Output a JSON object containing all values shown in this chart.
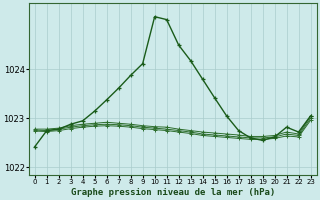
{
  "title": "Graphe pression niveau de la mer (hPa)",
  "background_color": "#ceeaea",
  "grid_color": "#aacccc",
  "line_color_main": "#1a5c1a",
  "line_color_flat": "#2d6e2d",
  "xlim": [
    -0.5,
    23.5
  ],
  "ylim": [
    1021.85,
    1025.35
  ],
  "yticks": [
    1022,
    1023,
    1024
  ],
  "xticks": [
    0,
    1,
    2,
    3,
    4,
    5,
    6,
    7,
    8,
    9,
    10,
    11,
    12,
    13,
    14,
    15,
    16,
    17,
    18,
    19,
    20,
    21,
    22,
    23
  ],
  "series_main": [
    1022.42,
    1022.75,
    1022.78,
    1022.88,
    1022.95,
    1023.15,
    1023.38,
    1023.62,
    1023.88,
    1024.12,
    1025.08,
    1025.02,
    1024.5,
    1024.18,
    1023.8,
    1023.42,
    1023.05,
    1022.75,
    1022.6,
    1022.55,
    1022.62,
    1022.82,
    1022.72,
    1023.05
  ],
  "series_flat1": [
    1022.78,
    1022.78,
    1022.8,
    1022.85,
    1022.88,
    1022.9,
    1022.92,
    1022.9,
    1022.88,
    1022.85,
    1022.83,
    1022.82,
    1022.78,
    1022.75,
    1022.72,
    1022.7,
    1022.68,
    1022.66,
    1022.63,
    1022.63,
    1022.65,
    1022.72,
    1022.68,
    1023.04
  ],
  "series_flat2": [
    1022.76,
    1022.75,
    1022.78,
    1022.82,
    1022.85,
    1022.87,
    1022.88,
    1022.87,
    1022.85,
    1022.82,
    1022.8,
    1022.78,
    1022.75,
    1022.72,
    1022.68,
    1022.66,
    1022.64,
    1022.62,
    1022.6,
    1022.6,
    1022.62,
    1022.68,
    1022.65,
    1023.0
  ],
  "series_flat3": [
    1022.74,
    1022.73,
    1022.75,
    1022.79,
    1022.82,
    1022.84,
    1022.85,
    1022.84,
    1022.82,
    1022.79,
    1022.77,
    1022.75,
    1022.72,
    1022.69,
    1022.65,
    1022.63,
    1022.61,
    1022.59,
    1022.57,
    1022.57,
    1022.59,
    1022.64,
    1022.62,
    1022.96
  ]
}
